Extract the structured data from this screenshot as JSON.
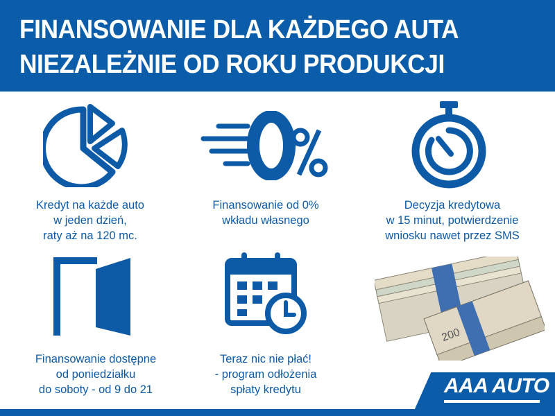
{
  "header": {
    "line1": "FINANSOWANIE DLA KAŻDEGO AUTA",
    "line2": "NIEZALEŻNIE OD ROKU PRODUKCJI"
  },
  "features": [
    {
      "icon": "pie-chart-icon",
      "lines": [
        "Kredyt na każde auto",
        "w jeden dzień,",
        "raty aż na 120 mc."
      ]
    },
    {
      "icon": "zero-percent-icon",
      "lines": [
        "Finansowanie od 0%",
        "wkładu własnego"
      ]
    },
    {
      "icon": "stopwatch-icon",
      "lines": [
        "Decyzja kredytowa",
        "w 15 minut, potwierdzenie",
        "wniosku nawet przez SMS"
      ]
    },
    {
      "icon": "open-door-icon",
      "lines": [
        "Finansowanie dostępne",
        "od poniedziałku",
        "do soboty - od 9 do 21"
      ]
    },
    {
      "icon": "calendar-clock-icon",
      "lines": [
        "Teraz nic nie płać!",
        "- program odłożenia",
        "spłaty kredytu"
      ]
    }
  ],
  "money_image": {
    "icon": "banknote-stack-icon",
    "denomination": "200"
  },
  "brand": {
    "logo": "AAA AUTO",
    "color": "#0b5ca9"
  }
}
